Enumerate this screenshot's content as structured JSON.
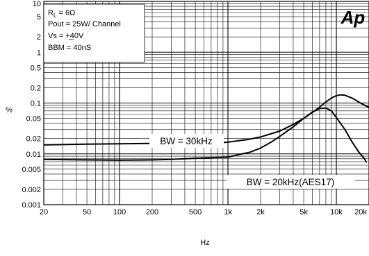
{
  "chart_data": {
    "type": "line",
    "x_scale": "log",
    "y_scale": "log",
    "xlim": [
      20,
      20000
    ],
    "ylim": [
      0.001,
      10
    ],
    "grid": true,
    "xlabel": "Hz",
    "ylabel": "%",
    "x_ticks": [
      {
        "value": 20,
        "label": "20"
      },
      {
        "value": 50,
        "label": "50"
      },
      {
        "value": 100,
        "label": "100"
      },
      {
        "value": 200,
        "label": "200"
      },
      {
        "value": 500,
        "label": "500"
      },
      {
        "value": 1000,
        "label": "1k"
      },
      {
        "value": 2000,
        "label": "2k"
      },
      {
        "value": 5000,
        "label": "5k"
      },
      {
        "value": 10000,
        "label": "10k"
      },
      {
        "value": 20000,
        "label": "20k"
      }
    ],
    "y_ticks": [
      {
        "value": 10,
        "label": "10"
      },
      {
        "value": 5,
        "label": "5"
      },
      {
        "value": 2,
        "label": "2"
      },
      {
        "value": 1,
        "label": "1"
      },
      {
        "value": 0.5,
        "label": "0.5"
      },
      {
        "value": 0.2,
        "label": "0.2"
      },
      {
        "value": 0.1,
        "label": "0.1"
      },
      {
        "value": 0.05,
        "label": "0.05"
      },
      {
        "value": 0.02,
        "label": "0.02"
      },
      {
        "value": 0.01,
        "label": "0.01"
      },
      {
        "value": 0.005,
        "label": "0.005"
      },
      {
        "value": 0.002,
        "label": "0.002"
      },
      {
        "value": 0.001,
        "label": "0.001"
      }
    ],
    "conditions": {
      "rl_prefix": "R",
      "rl_sub": "L",
      "rl_value": " = 6Ω",
      "pout": "Pout = 25W/ Channel",
      "vs_prefix": "Vs = ",
      "vs_value": "+40V",
      "bbm": "BBM = 40nS"
    },
    "logo": "Ap",
    "series": [
      {
        "name": "BW = 30kHz",
        "x": [
          20,
          30,
          50,
          100,
          200,
          300,
          400,
          500,
          700,
          1000,
          1500,
          2000,
          3000,
          4000,
          5000,
          6000,
          7000,
          8000,
          9000,
          10000,
          11000,
          12000,
          14000,
          16000,
          18000,
          20000
        ],
        "y": [
          0.015,
          0.0152,
          0.0155,
          0.0158,
          0.016,
          0.0158,
          0.0148,
          0.0155,
          0.016,
          0.017,
          0.019,
          0.0215,
          0.028,
          0.038,
          0.05,
          0.065,
          0.083,
          0.105,
          0.125,
          0.14,
          0.145,
          0.142,
          0.125,
          0.105,
          0.092,
          0.082
        ]
      },
      {
        "name": "BW = 20kHz(AES17)",
        "x": [
          20,
          30,
          50,
          100,
          200,
          300,
          500,
          700,
          1000,
          1300,
          1600,
          2000,
          2500,
          3000,
          4000,
          5000,
          6000,
          7000,
          8000,
          9000,
          10000,
          12000,
          14000,
          16000,
          18000,
          19000
        ],
        "y": [
          0.0078,
          0.0077,
          0.0076,
          0.0075,
          0.0076,
          0.0078,
          0.0082,
          0.0084,
          0.0086,
          0.0098,
          0.0108,
          0.013,
          0.017,
          0.022,
          0.034,
          0.05,
          0.066,
          0.078,
          0.08,
          0.07,
          0.052,
          0.03,
          0.017,
          0.011,
          0.0082,
          0.0068
        ]
      }
    ]
  }
}
